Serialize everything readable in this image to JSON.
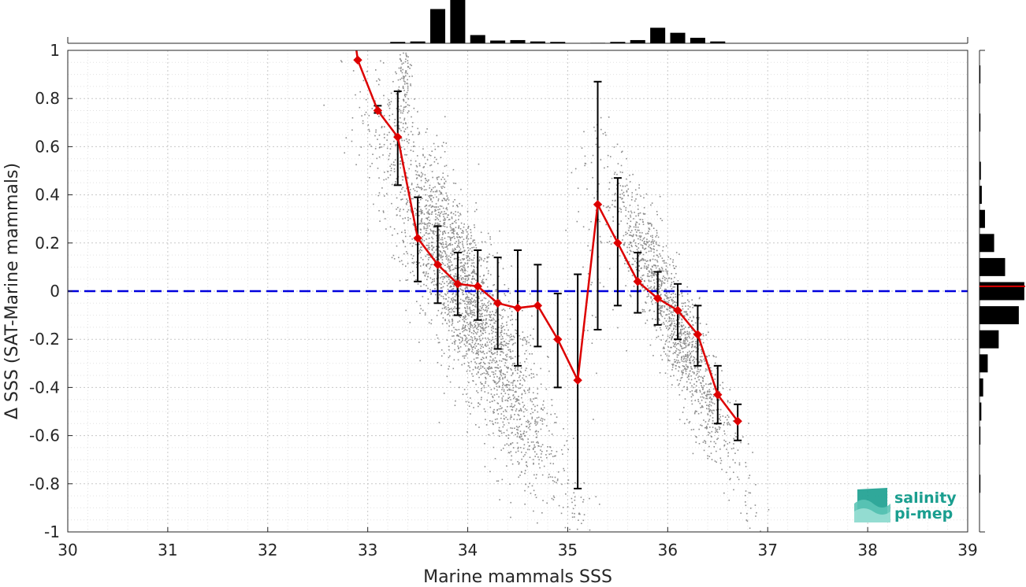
{
  "chart_data": {
    "type": "scatter",
    "xlabel": "Marine mammals SSS",
    "ylabel": "Δ SSS (SAT-Marine mammals)",
    "xlim": [
      30,
      39
    ],
    "ylim": [
      -1,
      1
    ],
    "xticks": [
      30,
      31,
      32,
      33,
      34,
      35,
      36,
      37,
      38,
      39
    ],
    "yticks": [
      -1,
      -0.8,
      -0.6,
      -0.4,
      -0.2,
      0,
      0.2,
      0.4,
      0.6,
      0.8,
      1
    ],
    "ytick_labels": [
      "-1",
      "-0.8",
      "-0.6",
      "-0.4",
      "-0.2",
      "0",
      "0.2",
      "0.4",
      "0.6",
      "0.8",
      "1"
    ],
    "grid": true,
    "zero_line": {
      "y": 0,
      "color": "#0000dd",
      "style": "dashed"
    },
    "binned_mean": {
      "color": "#dd0000",
      "marker": "diamond",
      "x": [
        32.9,
        33.1,
        33.3,
        33.5,
        33.7,
        33.9,
        34.1,
        34.3,
        34.5,
        34.7,
        34.9,
        35.1,
        35.3,
        35.5,
        35.7,
        35.9,
        36.1,
        36.3,
        36.5,
        36.7
      ],
      "y": [
        0.96,
        0.75,
        0.64,
        0.22,
        0.11,
        0.03,
        0.02,
        -0.05,
        -0.07,
        -0.06,
        -0.2,
        -0.37,
        0.36,
        0.2,
        0.04,
        -0.03,
        -0.08,
        -0.18,
        -0.43,
        -0.54
      ],
      "err_low": [
        null,
        0.74,
        0.44,
        0.04,
        -0.05,
        -0.1,
        -0.12,
        -0.24,
        -0.31,
        -0.23,
        -0.4,
        -0.82,
        -0.16,
        -0.06,
        -0.09,
        -0.14,
        -0.2,
        -0.31,
        -0.55,
        -0.62
      ],
      "err_high": [
        null,
        0.77,
        0.83,
        0.39,
        0.27,
        0.16,
        0.17,
        0.14,
        0.17,
        0.11,
        -0.01,
        0.07,
        0.87,
        0.47,
        0.16,
        0.08,
        0.03,
        -0.06,
        -0.31,
        -0.47
      ]
    },
    "scatter_clusters": [
      {
        "x_center": 33.95,
        "y_center": 0.0,
        "x_spread": 0.42,
        "y_spread": 0.18,
        "slope": -0.75,
        "count": 2600
      },
      {
        "x_center": 36.05,
        "y_center": -0.12,
        "x_spread": 0.32,
        "y_spread": 0.12,
        "slope": -0.9,
        "count": 1400
      },
      {
        "x_center": 33.35,
        "y_center": 0.85,
        "x_spread": 0.04,
        "y_spread": 0.12,
        "slope": 0,
        "count": 120
      },
      {
        "x_center": 34.5,
        "y_center": -0.65,
        "x_spread": 0.18,
        "y_spread": 0.12,
        "slope": 0,
        "count": 90
      },
      {
        "x_center": 35.3,
        "y_center": 0.2,
        "x_spread": 0.15,
        "y_spread": 0.22,
        "slope": 0,
        "count": 60
      },
      {
        "x_center": 35.1,
        "y_center": -0.9,
        "x_spread": 0.1,
        "y_spread": 0.06,
        "slope": 0,
        "count": 25
      }
    ],
    "x_histogram": {
      "bin_centers": [
        32.9,
        33.1,
        33.3,
        33.5,
        33.7,
        33.9,
        34.1,
        34.3,
        34.5,
        34.7,
        34.9,
        35.1,
        35.3,
        35.5,
        35.7,
        35.9,
        36.1,
        36.3,
        36.5,
        36.7
      ],
      "relative_counts": [
        0,
        0,
        0.03,
        0.04,
        0.75,
        1.0,
        0.18,
        0.06,
        0.07,
        0.04,
        0.03,
        0,
        0.01,
        0.03,
        0.07,
        0.34,
        0.23,
        0.12,
        0.04,
        0
      ]
    },
    "y_histogram": {
      "bin_centers": [
        0.9,
        0.7,
        0.5,
        0.4,
        0.3,
        0.2,
        0.1,
        0.0,
        -0.1,
        -0.2,
        -0.3,
        -0.4,
        -0.5,
        -0.6,
        -0.8
      ],
      "relative_counts": [
        0.02,
        0.02,
        0.03,
        0.05,
        0.12,
        0.32,
        0.56,
        0.98,
        0.86,
        0.42,
        0.18,
        0.08,
        0.04,
        0.02,
        0.02
      ],
      "mean_marker_y": 0.02,
      "mean_marker_color": "#dd0000"
    },
    "logo": {
      "line1": "salinity",
      "line2": "pi-mep",
      "color": "#1a9e8f"
    }
  }
}
